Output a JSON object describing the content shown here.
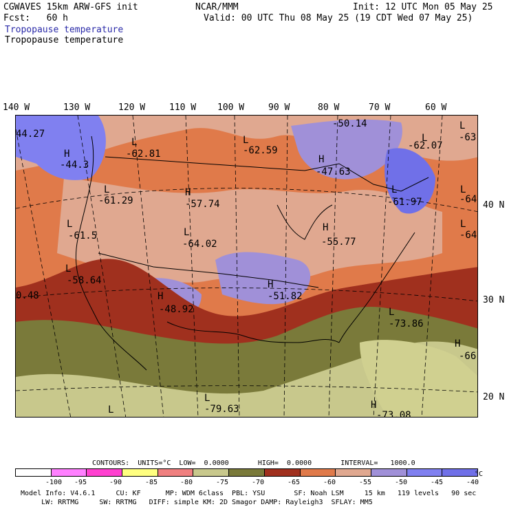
{
  "header": {
    "line1_left": "CGWAVES 15km ARW-GFS init",
    "line1_mid": "NCAR/MMM",
    "line1_right": "Init: 12 UTC Mon 05 May 25",
    "line2_left": "Fcst:   60 h",
    "line2_right": "Valid: 00 UTC Thu 08 May 25 (19 CDT Wed 07 May 25)",
    "field1": "Tropopause temperature",
    "field2": "Tropopause temperature"
  },
  "lon_labels": [
    "140 W",
    "130 W",
    "120 W",
    "110 W",
    "100 W",
    "90 W",
    "80 W",
    "70 W",
    "60 W"
  ],
  "lat_labels": [
    "40 N",
    "30 N",
    "20 N"
  ],
  "map_labels": [
    {
      "text": "44.27"
    },
    {
      "text": "H"
    },
    {
      "text": "-44.3"
    },
    {
      "text": "L"
    },
    {
      "text": "-62.81"
    },
    {
      "text": "L"
    },
    {
      "text": "-62.59"
    },
    {
      "text": "-50.14"
    },
    {
      "text": "H"
    },
    {
      "text": "-47.63"
    },
    {
      "text": "L"
    },
    {
      "text": "-62.07"
    },
    {
      "text": "L"
    },
    {
      "text": "-63"
    },
    {
      "text": "L"
    },
    {
      "text": "-61.29"
    },
    {
      "text": "H"
    },
    {
      "text": "-57.74"
    },
    {
      "text": "L"
    },
    {
      "text": "-61.97"
    },
    {
      "text": "L"
    },
    {
      "text": "-64"
    },
    {
      "text": "L"
    },
    {
      "text": "-61.5"
    },
    {
      "text": "L"
    },
    {
      "text": "-64.02"
    },
    {
      "text": "H"
    },
    {
      "text": "-55.77"
    },
    {
      "text": "L"
    },
    {
      "text": "-64"
    },
    {
      "text": "L"
    },
    {
      "text": "-58.64"
    },
    {
      "text": "0.48"
    },
    {
      "text": "H"
    },
    {
      "text": "H"
    },
    {
      "text": "-51.82"
    },
    {
      "text": "-48.92"
    },
    {
      "text": "L"
    },
    {
      "text": "-73.86"
    },
    {
      "text": "H"
    },
    {
      "text": "-66"
    },
    {
      "text": "L"
    },
    {
      "text": "-79.63"
    },
    {
      "text": "L"
    },
    {
      "text": "H"
    },
    {
      "text": "-73.08"
    }
  ],
  "contours": {
    "line": "CONTOURS:  UNITS=°C  LOW=  0.0000       HIGH=  0.0000       INTERVAL=   1000.0"
  },
  "legend": {
    "colors": [
      "#ffffff",
      "#ff80ff",
      "#ff40d0",
      "#ffff80",
      "#f08080",
      "#c8c88c",
      "#7a7a3a",
      "#a0301e",
      "#e07a4a",
      "#e0a890",
      "#a090d8",
      "#8080f0",
      "#7070e8"
    ],
    "labels": [
      "-100",
      "-95",
      "-90",
      "-85",
      "-80",
      "-75",
      "-70",
      "-65",
      "-60",
      "-55",
      "-50",
      "-45",
      "-40",
      "°C"
    ]
  },
  "footer": {
    "line1": "Model Info: V4.6.1     CU: KF      MP: WDM 6class  PBL: YSU       SF: Noah LSM     15 km   119 levels   90 sec",
    "line2": "     LW: RRTMG     SW: RRTMG   DIFF: simple KM: 2D Smagor DAMP: Rayleigh3  SFLAY: MM5"
  }
}
